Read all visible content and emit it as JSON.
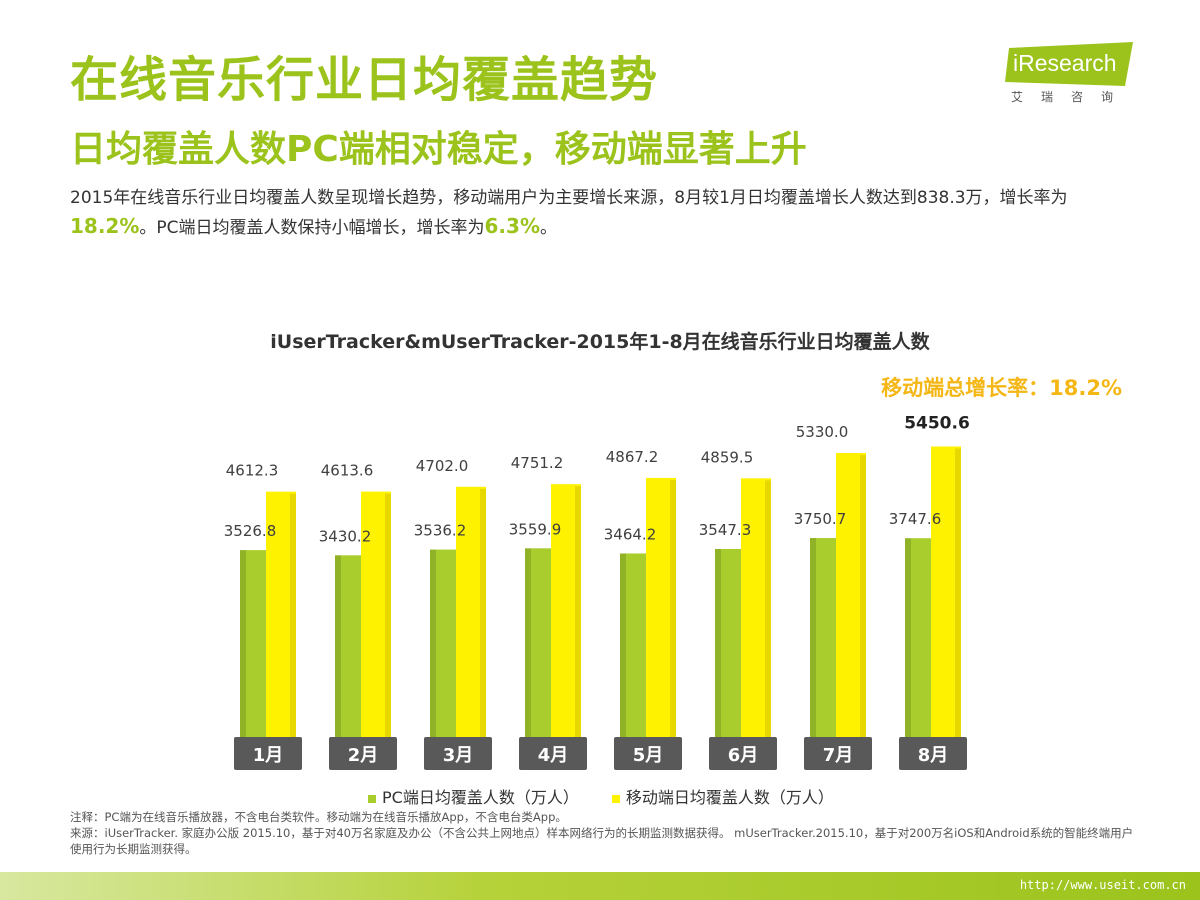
{
  "header": {
    "title": "在线音乐行业日均覆盖趋势",
    "subtitle": "日均覆盖人数PC端相对稳定，移动端显著上升",
    "desc_part1": "2015年在线音乐行业日均覆盖人数呈现增长趋势，移动端用户为主要增长来源，8月较1月日均覆盖增长人数达到838.3万，增长率为",
    "desc_hl1": "18.2%",
    "desc_part2": "。PC端日均覆盖人数保持小幅增长，增长率为",
    "desc_hl2": "6.3%",
    "desc_part3": "。"
  },
  "logo": {
    "text": "iResearch",
    "sub": "艾瑞咨询"
  },
  "growth_label": "移动端总增长率：18.2%",
  "chart_data": {
    "type": "bar",
    "title": "iUserTracker&mUserTracker-2015年1-8月在线音乐行业日均覆盖人数",
    "categories": [
      "1月",
      "2月",
      "3月",
      "4月",
      "5月",
      "6月",
      "7月",
      "8月"
    ],
    "series": [
      {
        "name": "PC端日均覆盖人数（万人）",
        "color": "#aacd2e",
        "values": [
          3526.8,
          3430.2,
          3536.2,
          3559.9,
          3464.2,
          3547.3,
          3750.7,
          3747.6
        ]
      },
      {
        "name": "移动端日均覆盖人数（万人）",
        "color": "#fff200",
        "values": [
          4612.3,
          4613.6,
          4702.0,
          4751.2,
          4867.2,
          4859.5,
          5330.0,
          5450.6
        ]
      }
    ],
    "value_labels": [
      [
        "3526.8",
        "3430.2",
        "3536.2",
        "3559.9",
        "3464.2",
        "3547.3",
        "3750.7",
        "3747.6"
      ],
      [
        "4612.3",
        "4613.6",
        "4702.0",
        "4751.2",
        "4867.2",
        "4859.5",
        "5330.0",
        "5450.6"
      ]
    ],
    "ylim": [
      0,
      6500
    ],
    "grid": false,
    "legend": "bottom"
  },
  "notes": {
    "line1": "注释：PC端为在线音乐播放器，不含电台类软件。移动端为在线音乐播放App，不含电台类App。",
    "line2": "来源：iUserTracker. 家庭办公版 2015.10，基于对40万名家庭及办公（不含公共上网地点）样本网络行为的长期监测数据获得。 mUserTracker.2015.10，基于对200万名iOS和Android系统的智能终端用户使用行为长期监测获得。"
  },
  "footer": {
    "url": "http://www.useit.com.cn"
  }
}
